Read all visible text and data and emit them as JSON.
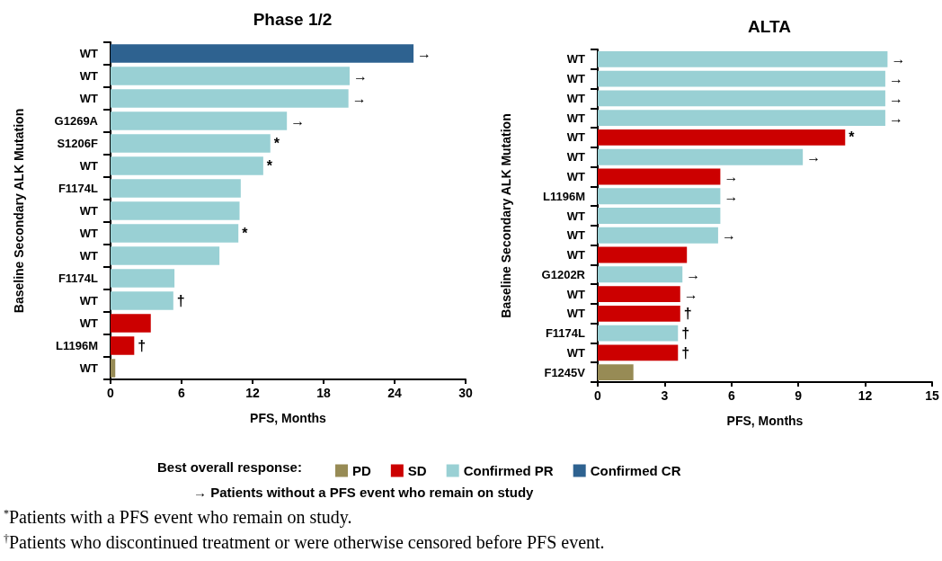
{
  "chart_data": [
    {
      "type": "bar",
      "orientation": "horizontal",
      "stacked": true,
      "title": "Phase 1/2",
      "xlabel": "PFS, Months",
      "ylabel": "Baseline Secondary ALK Mutation",
      "categories": [
        "WT",
        "WT",
        "WT",
        "G1269A",
        "S1206F",
        "WT",
        "F1174L",
        "WT",
        "WT",
        "WT",
        "F1174L",
        "WT",
        "WT",
        "L1196M",
        "WT"
      ],
      "xlim": [
        0,
        30
      ],
      "xticks": [
        0,
        6,
        12,
        18,
        24,
        30
      ],
      "legend": "bottom",
      "legend_title": "Best overall response:",
      "annotations": [
        "→ Patients without a PFS event who remain on study",
        "$^{*}$Patients with a PFS event who remain on study.",
        "$^{†}$Patients who discontinued treatment or were otherwise censored before PFS event."
      ],
      "series": [
        {
          "name": "PD",
          "color": "#978b55",
          "values": [
            null,
            null,
            null,
            null,
            null,
            null,
            null,
            null,
            null,
            null,
            null,
            null,
            null,
            null,
            0.4
          ],
          "value_labels": [
            null,
            null,
            null,
            null,
            null,
            null,
            null,
            null,
            null,
            null,
            null,
            null,
            null,
            null,
            null
          ]
        },
        {
          "name": "SD",
          "color": "#cc0000",
          "values": [
            null,
            null,
            null,
            null,
            null,
            null,
            null,
            null,
            null,
            null,
            null,
            null,
            3.4,
            2.0,
            null
          ],
          "value_labels": [
            null,
            null,
            null,
            null,
            null,
            null,
            null,
            null,
            null,
            null,
            null,
            null,
            null,
            "†",
            null
          ]
        },
        {
          "name": "Confirmed PR",
          "color": "#99d0d4",
          "values": [
            null,
            20.2,
            20.1,
            14.9,
            13.5,
            12.9,
            11.0,
            10.9,
            10.8,
            9.2,
            5.4,
            5.3,
            null,
            null,
            null
          ],
          "value_labels": [
            null,
            "→",
            "→",
            "→",
            "*",
            "*",
            null,
            null,
            "*",
            null,
            null,
            "†",
            null,
            null,
            null
          ]
        },
        {
          "name": "Confirmed CR",
          "color": "#2e6290",
          "values": [
            25.6,
            null,
            null,
            null,
            null,
            null,
            null,
            null,
            null,
            null,
            null,
            null,
            null,
            null,
            null
          ],
          "value_labels": [
            "→",
            null,
            null,
            null,
            null,
            null,
            null,
            null,
            null,
            null,
            null,
            null,
            null,
            null,
            null
          ]
        }
      ]
    },
    {
      "type": "bar",
      "orientation": "horizontal",
      "stacked": true,
      "title": "ALTA",
      "xlabel": "PFS, Months",
      "ylabel": "Baseline Secondary ALK Mutation",
      "categories": [
        "WT",
        "WT",
        "WT",
        "WT",
        "WT",
        "WT",
        "WT",
        "L1196M",
        "WT",
        "WT",
        "WT",
        "G1202R",
        "WT",
        "WT",
        "F1174L",
        "WT",
        "F1245V"
      ],
      "xlim": [
        0,
        15
      ],
      "xticks": [
        0,
        3,
        6,
        9,
        12,
        15
      ],
      "series": [
        {
          "name": "PD",
          "color": "#978b55",
          "values": [
            null,
            null,
            null,
            null,
            null,
            null,
            null,
            null,
            null,
            null,
            null,
            null,
            null,
            null,
            null,
            null,
            1.6
          ],
          "value_labels": [
            null,
            null,
            null,
            null,
            null,
            null,
            null,
            null,
            null,
            null,
            null,
            null,
            null,
            null,
            null,
            null,
            null
          ]
        },
        {
          "name": "SD",
          "color": "#cc0000",
          "values": [
            null,
            null,
            null,
            null,
            11.1,
            null,
            5.5,
            null,
            null,
            null,
            4.0,
            null,
            3.7,
            3.7,
            null,
            3.6,
            null
          ],
          "value_labels": [
            null,
            null,
            null,
            null,
            "*",
            null,
            "→",
            null,
            null,
            null,
            null,
            null,
            "→",
            "†",
            null,
            "†",
            null
          ]
        },
        {
          "name": "Confirmed PR",
          "color": "#99d0d4",
          "values": [
            13.0,
            12.9,
            12.9,
            12.9,
            null,
            9.2,
            null,
            5.5,
            5.5,
            5.4,
            null,
            3.8,
            null,
            null,
            3.6,
            null,
            null
          ],
          "value_labels": [
            "→",
            "→",
            "→",
            "→",
            null,
            "→",
            null,
            "→",
            null,
            "→",
            null,
            "→",
            null,
            null,
            "†",
            null,
            null
          ]
        }
      ]
    }
  ]
}
